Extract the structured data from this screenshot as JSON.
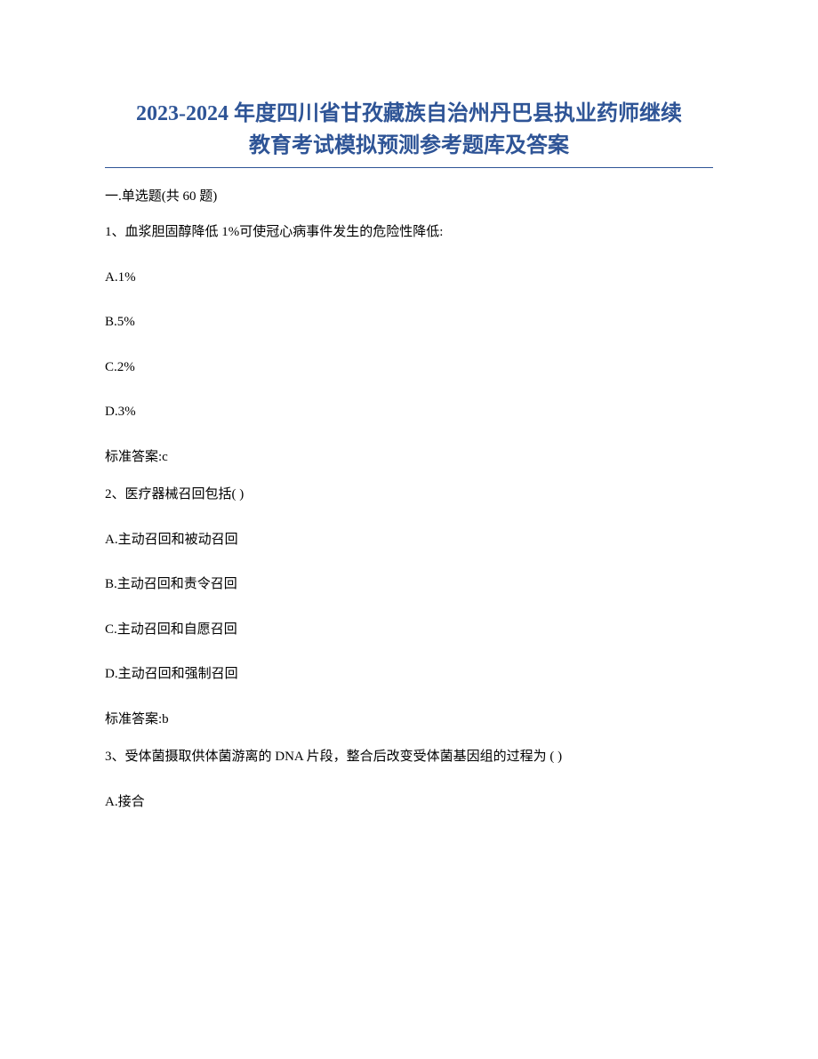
{
  "title_line1": "2023-2024 年度四川省甘孜藏族自治州丹巴县执业药师继续",
  "title_line2": "教育考试模拟预测参考题库及答案",
  "section_header": "一.单选题(共 60 题)",
  "questions": [
    {
      "prompt": "1、血浆胆固醇降低 1%可使冠心病事件发生的危险性降低:",
      "options": [
        "A.1%",
        "B.5%",
        "C.2%",
        "D.3%"
      ],
      "answer": "标准答案:c"
    },
    {
      "prompt": "2、医疗器械召回包括( )",
      "options": [
        "A.主动召回和被动召回",
        "B.主动召回和责令召回",
        "C.主动召回和自愿召回",
        "D.主动召回和强制召回"
      ],
      "answer": "标准答案:b"
    },
    {
      "prompt": "3、受体菌摄取供体菌游离的 DNA 片段，整合后改变受体菌基因组的过程为 ( )",
      "options": [
        "A.接合"
      ],
      "answer": ""
    }
  ],
  "colors": {
    "title_color": "#2e5496",
    "text_color": "#000000",
    "background": "#ffffff",
    "underline_color": "#2e5496"
  },
  "typography": {
    "title_fontsize": 24,
    "body_fontsize": 15,
    "title_weight": "bold",
    "font_family": "SimSun"
  }
}
